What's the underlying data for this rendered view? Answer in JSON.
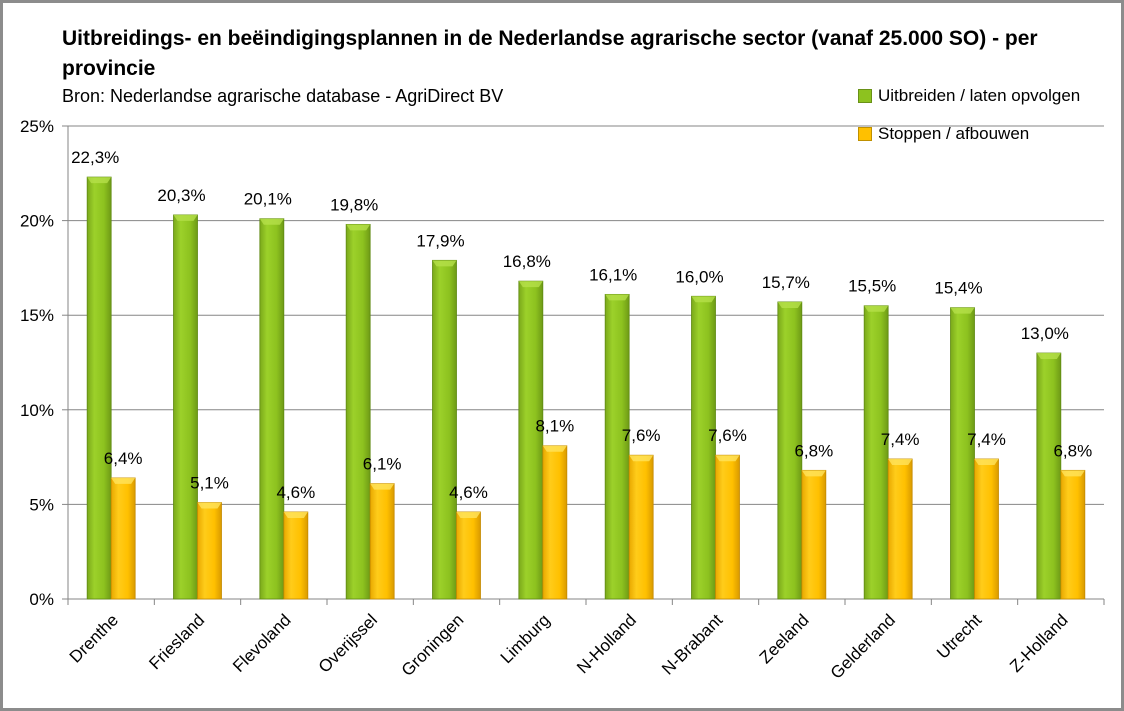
{
  "chart_data": {
    "type": "bar",
    "title": "Uitbreidings- en beëindigingsplannen in de Nederlandse agrarische sector (vanaf 25.000 SO) - per provincie",
    "subtitle": "Bron: Nederlandse agrarische database - AgriDirect BV",
    "xlabel": "",
    "ylabel": "",
    "ylim": [
      0,
      25
    ],
    "yticks": [
      0,
      5,
      10,
      15,
      20,
      25
    ],
    "ytick_labels": [
      "0%",
      "5%",
      "10%",
      "15%",
      "20%",
      "25%"
    ],
    "grid": true,
    "legend_position": "top-right",
    "categories": [
      "Drenthe",
      "Friesland",
      "Flevoland",
      "Overijssel",
      "Groningen",
      "Limburg",
      "N-Holland",
      "N-Brabant",
      "Zeeland",
      "Gelderland",
      "Utrecht",
      "Z-Holland"
    ],
    "series": [
      {
        "name": "Uitbreiden / laten opvolgen",
        "color": "#8dc21f",
        "values": [
          22.3,
          20.3,
          20.1,
          19.8,
          17.9,
          16.8,
          16.1,
          16.0,
          15.7,
          15.5,
          15.4,
          13.0
        ],
        "labels": [
          "22,3%",
          "20,3%",
          "20,1%",
          "19,8%",
          "17,9%",
          "16,8%",
          "16,1%",
          "16,0%",
          "15,7%",
          "15,5%",
          "15,4%",
          "13,0%"
        ]
      },
      {
        "name": "Stoppen / afbouwen",
        "color": "#ffc000",
        "values": [
          6.4,
          5.1,
          4.6,
          6.1,
          4.6,
          8.1,
          7.6,
          7.6,
          6.8,
          7.4,
          7.4,
          6.8
        ],
        "labels": [
          "6,4%",
          "5,1%",
          "4,6%",
          "6,1%",
          "4,6%",
          "8,1%",
          "7,6%",
          "7,6%",
          "6,8%",
          "7,4%",
          "7,4%",
          "6,8%"
        ]
      }
    ]
  }
}
